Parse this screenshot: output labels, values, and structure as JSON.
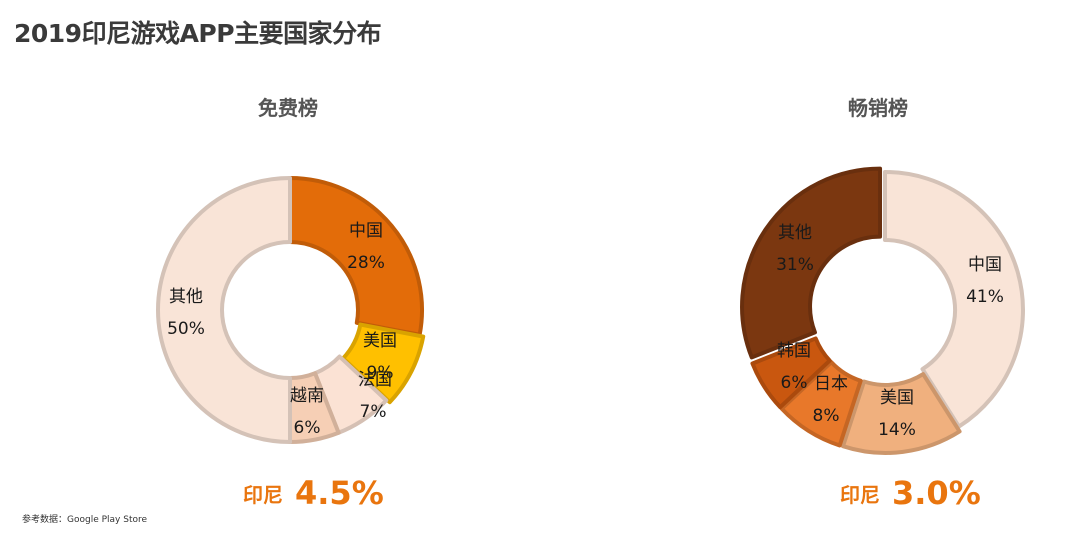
{
  "page": {
    "title": "2019印尼游戏APP主要国家分布",
    "source": "参考数据：Google Play Store"
  },
  "chart_data": [
    {
      "type": "pie",
      "title": "免费榜",
      "slices": [
        {
          "label": "中国",
          "value": 28,
          "display": "28%",
          "color": "#e36c09"
        },
        {
          "label": "美国",
          "value": 9,
          "display": "9%",
          "color": "#ffc000"
        },
        {
          "label": "法国",
          "value": 7,
          "display": "7%",
          "color": "#fbe2d4"
        },
        {
          "label": "越南",
          "value": 6,
          "display": "6%",
          "color": "#f6cfb5"
        },
        {
          "label": "其他",
          "value": 50,
          "display": "50%",
          "color": "#f9e4d7"
        }
      ],
      "highlight": {
        "country": "印尼",
        "value": "4.5%"
      }
    },
    {
      "type": "pie",
      "title": "畅销榜",
      "slices": [
        {
          "label": "中国",
          "value": 41,
          "display": "41%",
          "color": "#f9e4d7"
        },
        {
          "label": "美国",
          "value": 14,
          "display": "14%",
          "color": "#f0b07e"
        },
        {
          "label": "日本",
          "value": 8,
          "display": "8%",
          "color": "#e8782a"
        },
        {
          "label": "韩国",
          "value": 6,
          "display": "6%",
          "color": "#c9570f"
        },
        {
          "label": "其他",
          "value": 31,
          "display": "31%",
          "color": "#7b3710"
        }
      ],
      "highlight": {
        "country": "印尼",
        "value": "3.0%"
      }
    }
  ]
}
